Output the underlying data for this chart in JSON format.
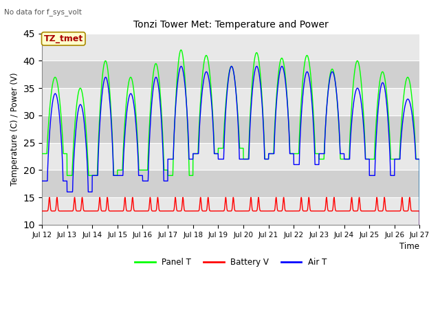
{
  "title": "Tonzi Tower Met: Temperature and Power",
  "no_data_text": "No data for f_sys_volt",
  "ylabel": "Temperature (C) / Power (V)",
  "xlabel": "Time",
  "ylim": [
    10,
    45
  ],
  "xlim_days": [
    0,
    15
  ],
  "xtick_labels": [
    "Jul 12",
    "Jul 13",
    "Jul 14",
    "Jul 15",
    "Jul 16",
    "Jul 17",
    "Jul 18",
    "Jul 19",
    "Jul 20",
    "Jul 21",
    "Jul 22",
    "Jul 23",
    "Jul 24",
    "Jul 25",
    "Jul 26",
    "Jul 27"
  ],
  "ytick_values": [
    10,
    15,
    20,
    25,
    30,
    35,
    40,
    45
  ],
  "legend_entries": [
    "Panel T",
    "Battery V",
    "Air T"
  ],
  "line_colors": [
    "#00ff00",
    "#ff0000",
    "#0000ff"
  ],
  "legend_box_label": "TZ_tmet",
  "legend_box_color": "#ffffcc",
  "legend_box_edge_color": "#aa8800",
  "bg_light": "#e8e8e8",
  "bg_dark": "#d0d0d0",
  "panel_t_peak": [
    37,
    35,
    40,
    37,
    39.5,
    42,
    41,
    39,
    41.5,
    40.5,
    41,
    38.5,
    40,
    38,
    37
  ],
  "panel_t_min": [
    23,
    19,
    19,
    20,
    20,
    19,
    23,
    24,
    22,
    23,
    23,
    22,
    22,
    22,
    22
  ],
  "air_t_peak": [
    34,
    32,
    37,
    34,
    37,
    39,
    38,
    39,
    39,
    39,
    38,
    38,
    35,
    36,
    33
  ],
  "air_t_min": [
    18,
    16,
    19,
    19,
    18,
    22,
    23,
    22,
    22,
    23,
    21,
    23,
    22,
    19,
    22
  ],
  "battery_base": 12.5,
  "battery_peak": 15.0
}
